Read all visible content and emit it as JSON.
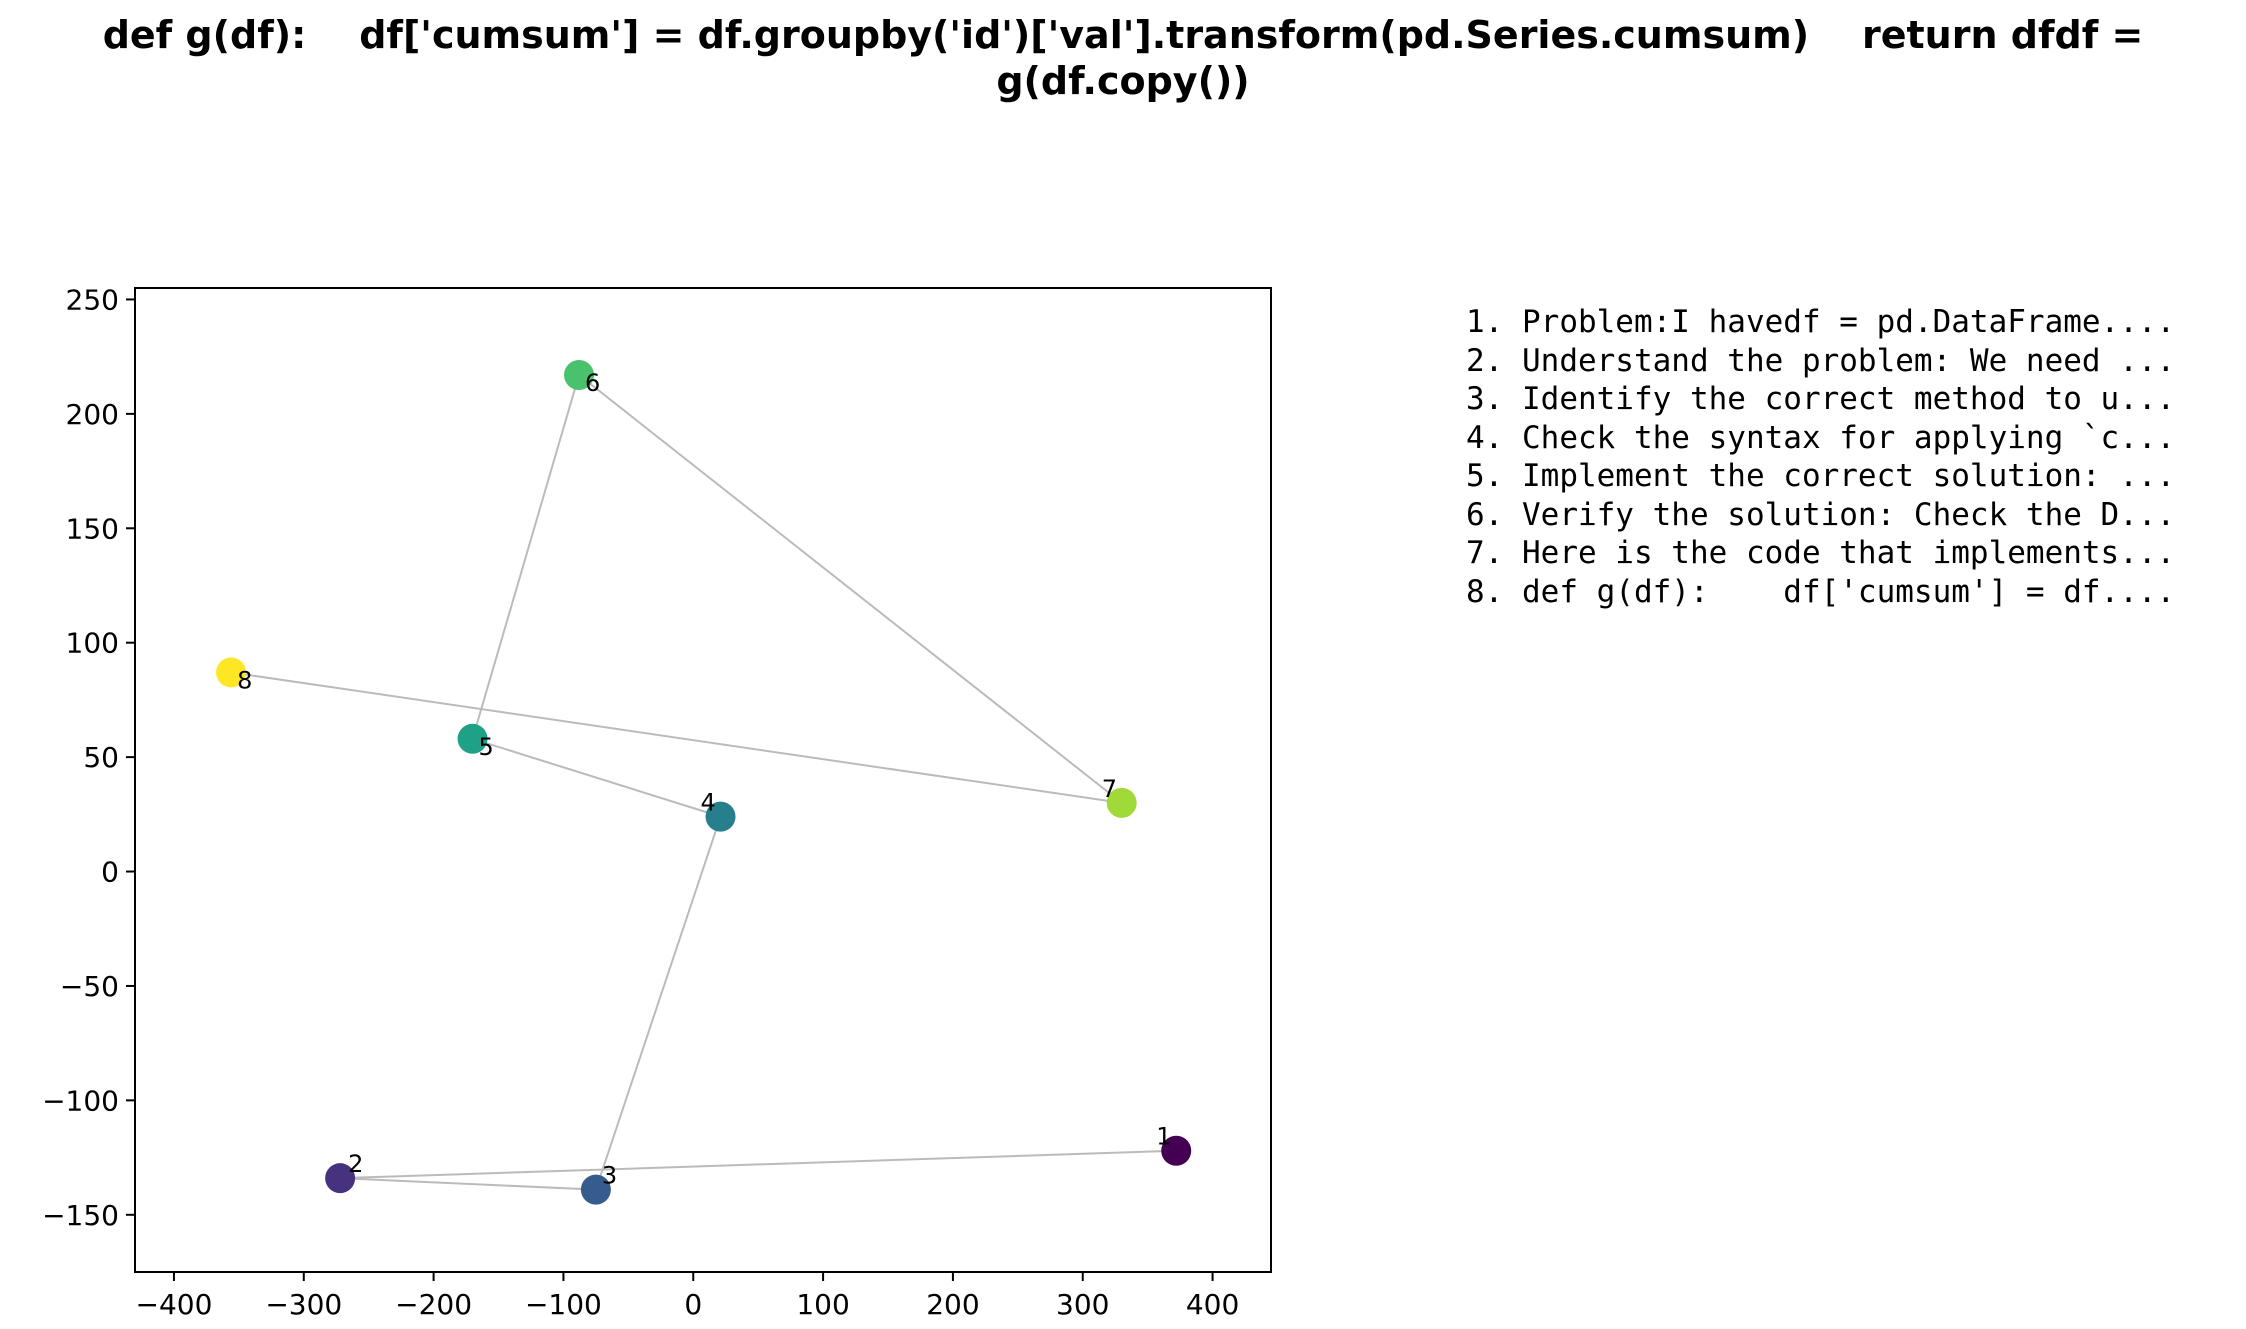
{
  "title_lines": [
    "def g(df):    df['cumsum'] = df.groupby('id')['val'].transform(pd.Series.cumsum)    return dfdf =",
    "g(df.copy())"
  ],
  "steps": [
    "1. Problem:I havedf = pd.DataFrame....",
    "2. Understand the problem: We need ...",
    "3. Identify the correct method to u...",
    "4. Check the syntax for applying `c...",
    "5. Implement the correct solution: ...",
    "6. Verify the solution: Check the D...",
    "7. Here is the code that implements...",
    "8. def g(df):    df['cumsum'] = df...."
  ],
  "chart_data": {
    "type": "scatter",
    "title": "def g(df):    df['cumsum'] = df.groupby('id')['val'].transform(pd.Series.cumsum)    return dfdf = g(df.copy())",
    "xlabel": "",
    "ylabel": "",
    "xlim": [
      -430,
      445
    ],
    "ylim": [
      -175,
      255
    ],
    "xticks": [
      -400,
      -300,
      -200,
      -100,
      0,
      100,
      200,
      300,
      400
    ],
    "yticks": [
      -150,
      -100,
      -50,
      0,
      50,
      100,
      150,
      200,
      250
    ],
    "grid": false,
    "connected": true,
    "line_color": "#bbbbbb",
    "points": [
      {
        "label": "1",
        "x": 372,
        "y": -122,
        "color": "#440154"
      },
      {
        "label": "2",
        "x": -272,
        "y": -134,
        "color": "#46327e"
      },
      {
        "label": "3",
        "x": -75,
        "y": -139,
        "color": "#365c8d"
      },
      {
        "label": "4",
        "x": 21,
        "y": 24,
        "color": "#277f8e"
      },
      {
        "label": "5",
        "x": -170,
        "y": 58,
        "color": "#1fa187"
      },
      {
        "label": "6",
        "x": -88,
        "y": 217,
        "color": "#4ac16d"
      },
      {
        "label": "7",
        "x": 330,
        "y": 30,
        "color": "#a0da39"
      },
      {
        "label": "8",
        "x": -356,
        "y": 87,
        "color": "#fde725"
      }
    ]
  }
}
